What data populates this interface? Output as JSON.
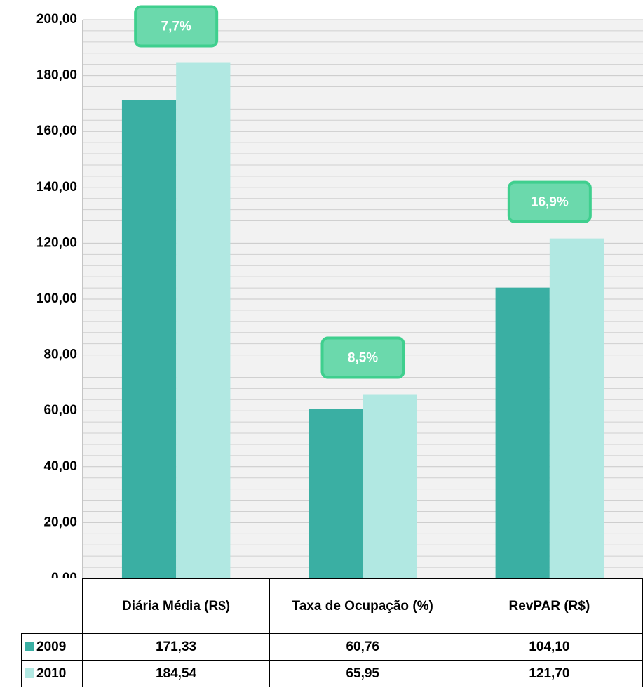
{
  "chart_data": {
    "type": "bar",
    "categories": [
      "Diária Média (R$)",
      "Taxa de Ocupação (%)",
      "RevPAR (R$)"
    ],
    "series": [
      {
        "name": "2009",
        "color": "#3aafa3",
        "values": [
          171.33,
          60.76,
          104.1
        ],
        "value_labels": [
          "171,33",
          "60,76",
          "104,10"
        ]
      },
      {
        "name": "2010",
        "color": "#b1e8e2",
        "values": [
          184.54,
          65.95,
          121.7
        ],
        "value_labels": [
          "184,54",
          "65,95",
          "121,70"
        ]
      }
    ],
    "annotations": [
      "7,7%",
      "8,5%",
      "16,9%"
    ],
    "ylim": [
      0,
      200
    ],
    "yticks": [
      {
        "value": 0,
        "label": "0,00"
      },
      {
        "value": 20,
        "label": "20,00"
      },
      {
        "value": 40,
        "label": "40,00"
      },
      {
        "value": 60,
        "label": "60,00"
      },
      {
        "value": 80,
        "label": "80,00"
      },
      {
        "value": 100,
        "label": "100,00"
      },
      {
        "value": 120,
        "label": "120,00"
      },
      {
        "value": 140,
        "label": "140,00"
      },
      {
        "value": 160,
        "label": "160,00"
      },
      {
        "value": 180,
        "label": "180,00"
      },
      {
        "value": 200,
        "label": "200,00"
      }
    ],
    "grid": true
  }
}
